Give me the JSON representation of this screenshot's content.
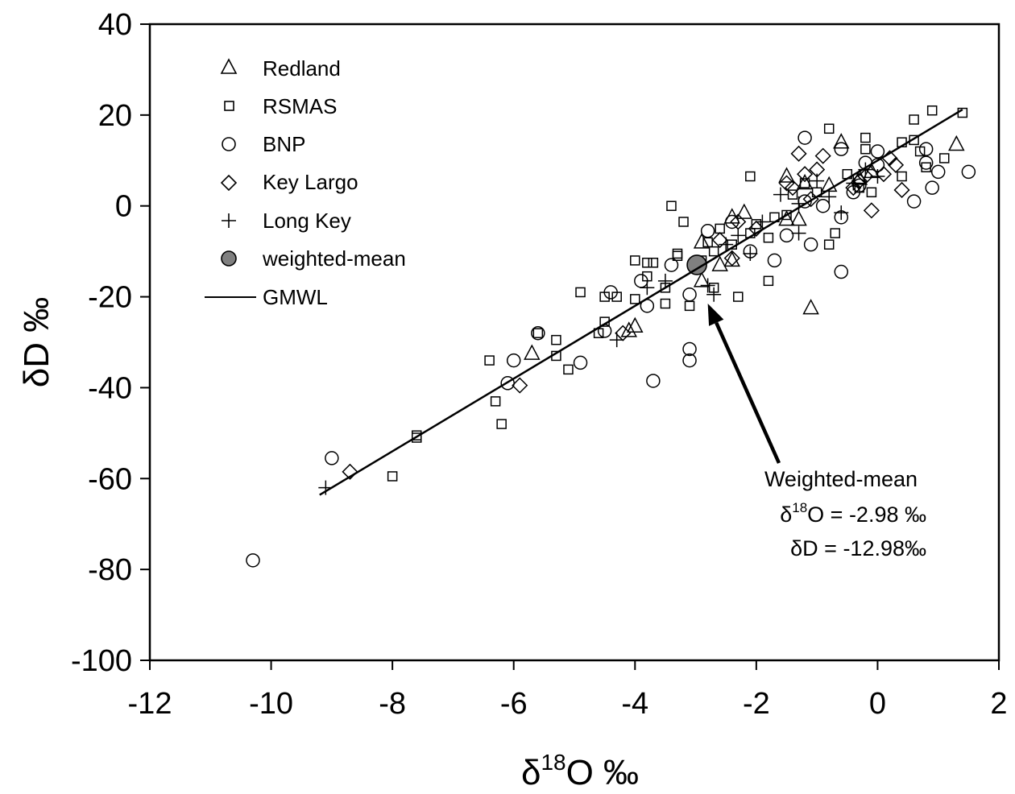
{
  "chart_data": {
    "type": "scatter",
    "xlabel": {
      "prefix": "δ",
      "sup": "18",
      "main": "O ‰"
    },
    "ylabel": {
      "prefix": "δ",
      "main": "D ‰"
    },
    "xlim": [
      -12,
      2
    ],
    "ylim": [
      -100,
      40
    ],
    "x_ticks": [
      "-12",
      "-10",
      "-8",
      "-6",
      "-4",
      "-2",
      "0",
      "2"
    ],
    "y_ticks": [
      "40",
      "20",
      "0",
      "-20",
      "-40",
      "-60",
      "-80",
      "-100"
    ],
    "grid": false,
    "legend_position": "top-left",
    "series": [
      {
        "name": "Redland",
        "marker": "triangle",
        "points": [
          [
            -5.7,
            -32.5
          ],
          [
            -4.0,
            -26.5
          ],
          [
            -4.1,
            -27.5
          ],
          [
            -2.9,
            -8.0
          ],
          [
            -2.9,
            -16.5
          ],
          [
            -2.6,
            -13.0
          ],
          [
            -2.4,
            -2.5
          ],
          [
            -2.4,
            -12.0
          ],
          [
            -2.2,
            -1.5
          ],
          [
            -1.5,
            6.5
          ],
          [
            -1.5,
            -3.0
          ],
          [
            -1.3,
            -3.0
          ],
          [
            -1.1,
            -22.5
          ],
          [
            -1.2,
            5.0
          ],
          [
            -0.8,
            4.5
          ],
          [
            -0.6,
            14.0
          ],
          [
            1.3,
            13.5
          ],
          [
            -0.3,
            6.0
          ],
          [
            -0.1,
            7.5
          ]
        ]
      },
      {
        "name": "RSMAS",
        "marker": "square",
        "points": [
          [
            1.4,
            20.5
          ],
          [
            0.9,
            21.0
          ],
          [
            0.6,
            19.0
          ],
          [
            0.6,
            14.5
          ],
          [
            0.7,
            12.0
          ],
          [
            0.8,
            8.5
          ],
          [
            1.1,
            10.5
          ],
          [
            0.4,
            14.0
          ],
          [
            0.4,
            6.5
          ],
          [
            -0.2,
            15.0
          ],
          [
            -0.2,
            12.5
          ],
          [
            -0.8,
            17.0
          ],
          [
            -0.3,
            4.0
          ],
          [
            -0.5,
            7.0
          ],
          [
            -0.7,
            -6.0
          ],
          [
            -0.8,
            -8.5
          ],
          [
            -1.0,
            3.0
          ],
          [
            -1.2,
            5.0
          ],
          [
            -1.4,
            2.5
          ],
          [
            -1.5,
            -2.0
          ],
          [
            -1.7,
            -2.5
          ],
          [
            -1.8,
            -7.0
          ],
          [
            -1.8,
            -16.5
          ],
          [
            -2.0,
            -4.0
          ],
          [
            -2.1,
            -6.0
          ],
          [
            -2.1,
            6.5
          ],
          [
            -2.3,
            -20.0
          ],
          [
            -2.4,
            -8.5
          ],
          [
            -2.6,
            -5.0
          ],
          [
            -2.7,
            -10.0
          ],
          [
            -2.7,
            -18.0
          ],
          [
            -2.8,
            -8.0
          ],
          [
            -2.9,
            -12.0
          ],
          [
            -3.1,
            -22.0
          ],
          [
            -3.2,
            -3.5
          ],
          [
            -3.3,
            -11.0
          ],
          [
            -3.4,
            0.0
          ],
          [
            -3.5,
            -18.0
          ],
          [
            -3.5,
            -21.5
          ],
          [
            -3.7,
            -12.5
          ],
          [
            -3.8,
            -15.5
          ],
          [
            -3.8,
            -12.5
          ],
          [
            -4.0,
            -12.0
          ],
          [
            -4.0,
            -20.5
          ],
          [
            -4.3,
            -20.0
          ],
          [
            -4.5,
            -25.5
          ],
          [
            -4.5,
            -20.0
          ],
          [
            -4.6,
            -28.0
          ],
          [
            -4.9,
            -19.0
          ],
          [
            -5.1,
            -36.0
          ],
          [
            -5.3,
            -33.0
          ],
          [
            -5.3,
            -29.5
          ],
          [
            -5.6,
            -28.0
          ],
          [
            -6.2,
            -48.0
          ],
          [
            -6.3,
            -43.0
          ],
          [
            -6.4,
            -34.0
          ],
          [
            -7.6,
            -50.5
          ],
          [
            -7.6,
            -51.0
          ],
          [
            -8.0,
            -59.5
          ],
          [
            -0.1,
            3.0
          ],
          [
            -3.3,
            -10.5
          ]
        ]
      },
      {
        "name": "BNP",
        "marker": "circle",
        "points": [
          [
            1.5,
            7.5
          ],
          [
            0.9,
            4.0
          ],
          [
            1.0,
            7.5
          ],
          [
            0.8,
            12.5
          ],
          [
            0.8,
            9.5
          ],
          [
            0.6,
            1.0
          ],
          [
            0.0,
            12.0
          ],
          [
            0.0,
            9.0
          ],
          [
            -0.2,
            9.5
          ],
          [
            -0.3,
            4.5
          ],
          [
            -0.4,
            3.0
          ],
          [
            -0.6,
            12.5
          ],
          [
            -0.6,
            -14.5
          ],
          [
            -0.6,
            -2.5
          ],
          [
            -0.9,
            0.0
          ],
          [
            -1.1,
            -8.5
          ],
          [
            -1.2,
            15.0
          ],
          [
            -1.2,
            1.0
          ],
          [
            -1.5,
            -6.5
          ],
          [
            -1.7,
            -12.0
          ],
          [
            -2.1,
            -10.0
          ],
          [
            -2.4,
            -3.5
          ],
          [
            -2.8,
            -5.5
          ],
          [
            -3.1,
            -31.5
          ],
          [
            -3.1,
            -34.0
          ],
          [
            -3.1,
            -19.5
          ],
          [
            -3.4,
            -13.0
          ],
          [
            -3.7,
            -38.5
          ],
          [
            -3.9,
            -16.5
          ],
          [
            -3.8,
            -22.0
          ],
          [
            -4.4,
            -19.0
          ],
          [
            -4.5,
            -27.5
          ],
          [
            -4.9,
            -34.5
          ],
          [
            -5.6,
            -28.0
          ],
          [
            -6.0,
            -34.0
          ],
          [
            -6.1,
            -39.0
          ],
          [
            -9.0,
            -55.5
          ],
          [
            -10.3,
            -78.0
          ]
        ]
      },
      {
        "name": "Key Largo",
        "marker": "diamond",
        "points": [
          [
            0.2,
            10.5
          ],
          [
            0.3,
            9.0
          ],
          [
            0.4,
            3.5
          ],
          [
            0.1,
            7.0
          ],
          [
            -0.1,
            -1.0
          ],
          [
            -0.3,
            5.5
          ],
          [
            -0.4,
            4.0
          ],
          [
            -0.9,
            11.0
          ],
          [
            -1.0,
            8.0
          ],
          [
            -1.3,
            11.5
          ],
          [
            -1.2,
            7.0
          ],
          [
            -1.4,
            4.0
          ],
          [
            -1.5,
            5.0
          ],
          [
            -2.0,
            -5.0
          ],
          [
            -2.3,
            -3.5
          ],
          [
            -2.4,
            -11.5
          ],
          [
            -2.6,
            -7.5
          ],
          [
            -4.2,
            -28.0
          ],
          [
            -5.9,
            -39.5
          ],
          [
            -8.7,
            -58.5
          ],
          [
            -0.2,
            6.5
          ],
          [
            -1.1,
            1.5
          ]
        ]
      },
      {
        "name": "Long Key",
        "marker": "plus",
        "points": [
          [
            -9.1,
            -62.0
          ],
          [
            -4.3,
            -29.5
          ],
          [
            -3.8,
            -18.0
          ],
          [
            -3.5,
            -16.5
          ],
          [
            -2.8,
            -17.5
          ],
          [
            -2.7,
            -19.5
          ],
          [
            -2.5,
            -8.5
          ],
          [
            -2.3,
            -6.5
          ],
          [
            -2.1,
            -10.5
          ],
          [
            -1.9,
            -3.5
          ],
          [
            -1.6,
            2.5
          ],
          [
            -1.3,
            0.5
          ],
          [
            -1.0,
            5.5
          ],
          [
            -0.8,
            2.0
          ],
          [
            -0.6,
            -1.5
          ],
          [
            -0.4,
            5.0
          ],
          [
            -0.2,
            8.0
          ],
          [
            0.0,
            6.5
          ],
          [
            -1.3,
            -6.0
          ]
        ]
      },
      {
        "name": "weighted-mean",
        "marker": "filled-circle",
        "color": "#808080",
        "points": [
          [
            -2.98,
            -12.98
          ]
        ]
      },
      {
        "name": "GMWL",
        "marker": "line",
        "points": [
          [
            -9.2,
            -63.6
          ],
          [
            1.4,
            21.2
          ]
        ]
      }
    ],
    "annotation": {
      "line1": "Weighted-mean",
      "line2_prefix": "δ",
      "line2_sup": "18",
      "line2_rest": "O = -2.98 ‰",
      "line3": "δD = -12.98‰",
      "arrow_target": [
        -2.8,
        -21.5
      ]
    }
  }
}
